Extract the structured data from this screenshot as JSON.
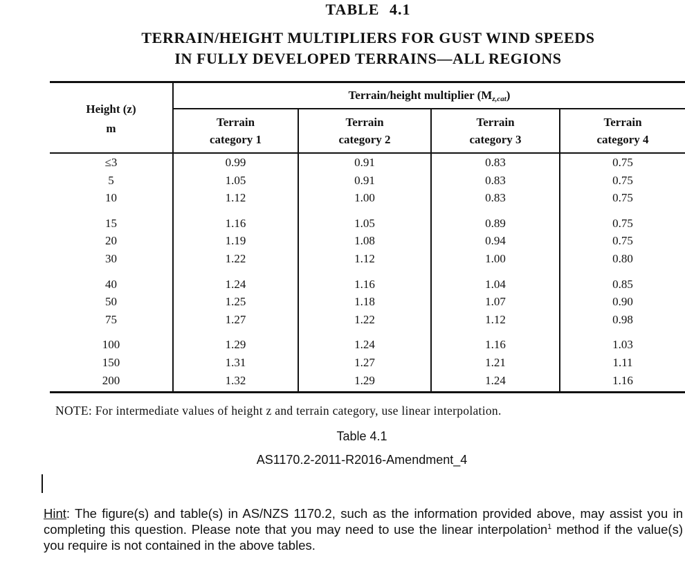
{
  "table_label": "TABLE 4.1",
  "title": {
    "line1": "TERRAIN/HEIGHT MULTIPLIERS FOR GUST WIND SPEEDS",
    "line2": "IN FULLY DEVELOPED TERRAINS—ALL REGIONS"
  },
  "table": {
    "height_header": {
      "line1": "Height (z)",
      "line2": "m"
    },
    "group_header": {
      "prefix": "Terrain/height multiplier (M",
      "subscript": "z,cat",
      "suffix": ")"
    },
    "columns": [
      {
        "line1": "Terrain",
        "line2": "category 1"
      },
      {
        "line1": "Terrain",
        "line2": "category 2"
      },
      {
        "line1": "Terrain",
        "line2": "category 3"
      },
      {
        "line1": "Terrain",
        "line2": "category 4"
      }
    ],
    "rows": [
      {
        "height": "≤3",
        "values": [
          "0.99",
          "0.91",
          "0.83",
          "0.75"
        ]
      },
      {
        "height": "5",
        "values": [
          "1.05",
          "0.91",
          "0.83",
          "0.75"
        ]
      },
      {
        "height": "10",
        "values": [
          "1.12",
          "1.00",
          "0.83",
          "0.75"
        ]
      },
      {
        "height": "15",
        "values": [
          "1.16",
          "1.05",
          "0.89",
          "0.75"
        ]
      },
      {
        "height": "20",
        "values": [
          "1.19",
          "1.08",
          "0.94",
          "0.75"
        ]
      },
      {
        "height": "30",
        "values": [
          "1.22",
          "1.12",
          "1.00",
          "0.80"
        ]
      },
      {
        "height": "40",
        "values": [
          "1.24",
          "1.16",
          "1.04",
          "0.85"
        ]
      },
      {
        "height": "50",
        "values": [
          "1.25",
          "1.18",
          "1.07",
          "0.90"
        ]
      },
      {
        "height": "75",
        "values": [
          "1.27",
          "1.22",
          "1.12",
          "0.98"
        ]
      },
      {
        "height": "100",
        "values": [
          "1.29",
          "1.24",
          "1.16",
          "1.03"
        ]
      },
      {
        "height": "150",
        "values": [
          "1.31",
          "1.27",
          "1.21",
          "1.11"
        ]
      },
      {
        "height": "200",
        "values": [
          "1.32",
          "1.29",
          "1.24",
          "1.16"
        ]
      }
    ]
  },
  "note": "NOTE: For intermediate values of height z and terrain category, use linear interpolation.",
  "caption": {
    "line1": "Table 4.1",
    "line2": "AS1170.2-2011-R2016-Amendment_4"
  },
  "hint": {
    "label": "Hint",
    "text_before_sup": ": The figure(s) and table(s) in AS/NZS 1170.2, such as the information provided above, may assist you in completing this question. Please note that you may need to use the linear interpolation",
    "sup": "1",
    "text_after_sup": " method if the value(s) you require is not contained in the above tables."
  }
}
